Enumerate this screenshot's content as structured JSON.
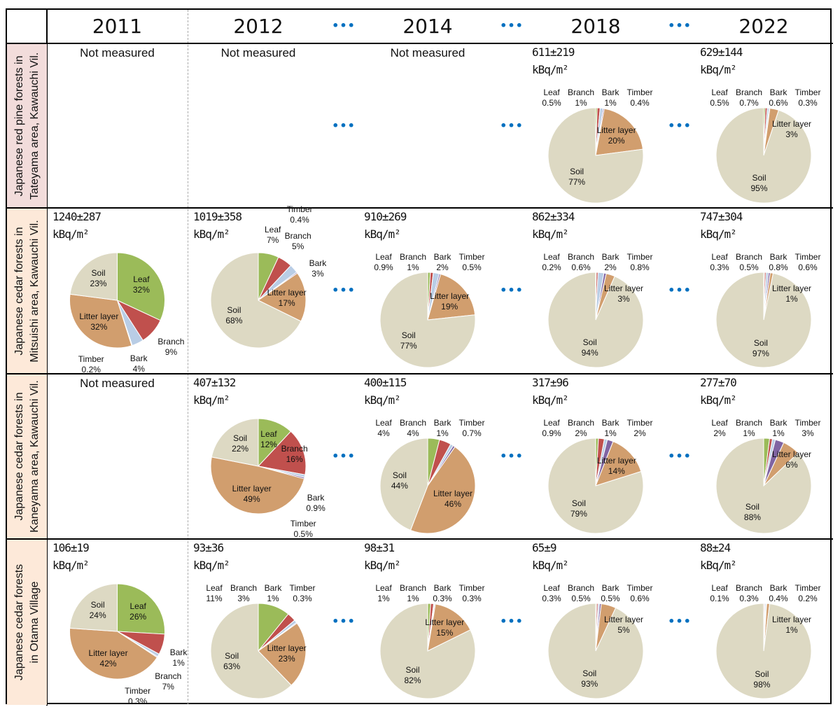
{
  "header": {
    "corner": ""
  },
  "continuation_marker": "•••",
  "colors": {
    "Leaf": "#9bbb59",
    "Branch": "#c0504d",
    "Bark": "#b9cde5",
    "Timber": "#8064a2",
    "Litter layer": "#d19e6e",
    "Soil": "#ddd9c3",
    "continuation_marker": "#0070c0"
  },
  "chart_data": {
    "type": "pie",
    "columns": [
      "2011",
      "2012",
      "2014",
      "2018",
      "2022"
    ],
    "rows": [
      {
        "label_lines": [
          "Japanese red pine forests in",
          "Tateyama area, Kawauchi Vil."
        ],
        "bg": "#f2dcdb",
        "cells": [
          {
            "status": "Not measured"
          },
          {
            "status": "Not measured"
          },
          {
            "status": "Not measured"
          },
          {
            "value": "611±219",
            "unit": "kBq/m²",
            "label_style": "top",
            "slices": [
              {
                "name": "Leaf",
                "value": 0.5,
                "label": "0.5%"
              },
              {
                "name": "Branch",
                "value": 1,
                "label": "1%"
              },
              {
                "name": "Bark",
                "value": 1,
                "label": "1%"
              },
              {
                "name": "Timber",
                "value": 0.4,
                "label": "0.4%"
              },
              {
                "name": "Litter layer",
                "value": 20,
                "label": "20%"
              },
              {
                "name": "Soil",
                "value": 77,
                "label": "77%"
              }
            ]
          },
          {
            "value": "629±144",
            "unit": "kBq/m²",
            "label_style": "top",
            "slices": [
              {
                "name": "Leaf",
                "value": 0.5,
                "label": "0.5%"
              },
              {
                "name": "Branch",
                "value": 0.7,
                "label": "0.7%"
              },
              {
                "name": "Bark",
                "value": 0.6,
                "label": "0.6%"
              },
              {
                "name": "Timber",
                "value": 0.3,
                "label": "0.3%"
              },
              {
                "name": "Litter layer",
                "value": 3,
                "label": "3%"
              },
              {
                "name": "Soil",
                "value": 95,
                "label": "95%"
              }
            ]
          }
        ]
      },
      {
        "label_lines": [
          "Japanese cedar forests in",
          "Mitsuishi area, Kawauchi Vil."
        ],
        "bg": "#fde9d9",
        "cells": [
          {
            "value": "1240±287",
            "unit": "kBq/m²",
            "label_style": "slice",
            "slices": [
              {
                "name": "Leaf",
                "value": 32,
                "label": "32%"
              },
              {
                "name": "Branch",
                "value": 9,
                "label": "9%"
              },
              {
                "name": "Bark",
                "value": 4,
                "label": "4%"
              },
              {
                "name": "Timber",
                "value": 0.2,
                "label": "0.2%"
              },
              {
                "name": "Litter layer",
                "value": 32,
                "label": "32%"
              },
              {
                "name": "Soil",
                "value": 23,
                "label": "23%"
              }
            ]
          },
          {
            "value": "1019±358",
            "unit": "kBq/m²",
            "label_style": "slice",
            "slices": [
              {
                "name": "Leaf",
                "value": 7,
                "label": "7%"
              },
              {
                "name": "Branch",
                "value": 5,
                "label": "5%"
              },
              {
                "name": "Bark",
                "value": 3,
                "label": "3%"
              },
              {
                "name": "Timber",
                "value": 0.4,
                "label": "0.4%"
              },
              {
                "name": "Litter layer",
                "value": 17,
                "label": "17%"
              },
              {
                "name": "Soil",
                "value": 68,
                "label": "68%"
              }
            ]
          },
          {
            "value": "910±269",
            "unit": "kBq/m²",
            "label_style": "top",
            "slices": [
              {
                "name": "Leaf",
                "value": 0.9,
                "label": "0.9%"
              },
              {
                "name": "Branch",
                "value": 1,
                "label": "1%"
              },
              {
                "name": "Bark",
                "value": 2,
                "label": "2%"
              },
              {
                "name": "Timber",
                "value": 0.5,
                "label": "0.5%"
              },
              {
                "name": "Litter layer",
                "value": 19,
                "label": "19%"
              },
              {
                "name": "Soil",
                "value": 77,
                "label": "77%"
              }
            ]
          },
          {
            "value": "862±334",
            "unit": "kBq/m²",
            "label_style": "top",
            "slices": [
              {
                "name": "Leaf",
                "value": 0.2,
                "label": "0.2%"
              },
              {
                "name": "Branch",
                "value": 0.6,
                "label": "0.6%"
              },
              {
                "name": "Bark",
                "value": 2,
                "label": "2%"
              },
              {
                "name": "Timber",
                "value": 0.8,
                "label": "0.8%"
              },
              {
                "name": "Litter layer",
                "value": 3,
                "label": "3%"
              },
              {
                "name": "Soil",
                "value": 94,
                "label": "94%"
              }
            ]
          },
          {
            "value": "747±304",
            "unit": "kBq/m²",
            "label_style": "top",
            "slices": [
              {
                "name": "Leaf",
                "value": 0.3,
                "label": "0.3%"
              },
              {
                "name": "Branch",
                "value": 0.5,
                "label": "0.5%"
              },
              {
                "name": "Bark",
                "value": 0.8,
                "label": "0.8%"
              },
              {
                "name": "Timber",
                "value": 0.6,
                "label": "0.6%"
              },
              {
                "name": "Litter layer",
                "value": 1,
                "label": "1%"
              },
              {
                "name": "Soil",
                "value": 97,
                "label": "97%"
              }
            ]
          }
        ]
      },
      {
        "label_lines": [
          "Japanese cedar forests in",
          "Kaneyama area, Kawauchi Vil."
        ],
        "bg": "#fde9d9",
        "cells": [
          {
            "status": "Not measured"
          },
          {
            "value": "407±132",
            "unit": "kBq/m²",
            "label_style": "slice",
            "slices": [
              {
                "name": "Leaf",
                "value": 12,
                "label": "12%"
              },
              {
                "name": "Branch",
                "value": 16,
                "label": "16%"
              },
              {
                "name": "Bark",
                "value": 0.9,
                "label": "0.9%"
              },
              {
                "name": "Timber",
                "value": 0.5,
                "label": "0.5%"
              },
              {
                "name": "Litter layer",
                "value": 49,
                "label": "49%"
              },
              {
                "name": "Soil",
                "value": 22,
                "label": "22%"
              }
            ]
          },
          {
            "value": "400±115",
            "unit": "kBq/m²",
            "label_style": "top",
            "slices": [
              {
                "name": "Leaf",
                "value": 4,
                "label": "4%"
              },
              {
                "name": "Branch",
                "value": 4,
                "label": "4%"
              },
              {
                "name": "Bark",
                "value": 1,
                "label": "1%"
              },
              {
                "name": "Timber",
                "value": 0.7,
                "label": "0.7%"
              },
              {
                "name": "Litter layer",
                "value": 46,
                "label": "46%"
              },
              {
                "name": "Soil",
                "value": 44,
                "label": "44%"
              }
            ]
          },
          {
            "value": "317±96",
            "unit": "kBq/m²",
            "label_style": "top",
            "slices": [
              {
                "name": "Leaf",
                "value": 0.9,
                "label": "0.9%"
              },
              {
                "name": "Branch",
                "value": 2,
                "label": "2%"
              },
              {
                "name": "Bark",
                "value": 1,
                "label": "1%"
              },
              {
                "name": "Timber",
                "value": 2,
                "label": "2%"
              },
              {
                "name": "Litter layer",
                "value": 14,
                "label": "14%"
              },
              {
                "name": "Soil",
                "value": 79,
                "label": "79%"
              }
            ]
          },
          {
            "value": "277±70",
            "unit": "kBq/m²",
            "label_style": "top",
            "slices": [
              {
                "name": "Leaf",
                "value": 2,
                "label": "2%"
              },
              {
                "name": "Branch",
                "value": 1,
                "label": "1%"
              },
              {
                "name": "Bark",
                "value": 1,
                "label": "1%"
              },
              {
                "name": "Timber",
                "value": 3,
                "label": "3%"
              },
              {
                "name": "Litter layer",
                "value": 6,
                "label": "6%"
              },
              {
                "name": "Soil",
                "value": 88,
                "label": "88%"
              }
            ]
          }
        ]
      },
      {
        "label_lines": [
          "Japanese cedar forests",
          "in Otama Village"
        ],
        "bg": "#fde9d9",
        "cells": [
          {
            "value": "106±19",
            "unit": "kBq/m²",
            "label_style": "slice",
            "slices": [
              {
                "name": "Leaf",
                "value": 26,
                "label": "26%"
              },
              {
                "name": "Branch",
                "value": 7,
                "label": "7%"
              },
              {
                "name": "Bark",
                "value": 1,
                "label": "1%"
              },
              {
                "name": "Timber",
                "value": 0.3,
                "label": "0.3%"
              },
              {
                "name": "Litter layer",
                "value": 42,
                "label": "42%"
              },
              {
                "name": "Soil",
                "value": 24,
                "label": "24%"
              }
            ]
          },
          {
            "value": "93±36",
            "unit": "kBq/m²",
            "label_style": "top",
            "slices": [
              {
                "name": "Leaf",
                "value": 11,
                "label": "11%"
              },
              {
                "name": "Branch",
                "value": 3,
                "label": "3%"
              },
              {
                "name": "Bark",
                "value": 1,
                "label": "1%"
              },
              {
                "name": "Timber",
                "value": 0.3,
                "label": "0.3%"
              },
              {
                "name": "Litter layer",
                "value": 23,
                "label": "23%"
              },
              {
                "name": "Soil",
                "value": 63,
                "label": "63%"
              }
            ]
          },
          {
            "value": "98±31",
            "unit": "kBq/m²",
            "label_style": "top",
            "slices": [
              {
                "name": "Leaf",
                "value": 1,
                "label": "1%"
              },
              {
                "name": "Branch",
                "value": 1,
                "label": "1%"
              },
              {
                "name": "Bark",
                "value": 0.3,
                "label": "0.3%"
              },
              {
                "name": "Timber",
                "value": 0.3,
                "label": "0.3%"
              },
              {
                "name": "Litter layer",
                "value": 15,
                "label": "15%"
              },
              {
                "name": "Soil",
                "value": 82,
                "label": "82%"
              }
            ]
          },
          {
            "value": "65±9",
            "unit": "kBq/m²",
            "label_style": "top",
            "slices": [
              {
                "name": "Leaf",
                "value": 0.3,
                "label": "0.3%"
              },
              {
                "name": "Branch",
                "value": 0.5,
                "label": "0.5%"
              },
              {
                "name": "Bark",
                "value": 0.5,
                "label": "0.5%"
              },
              {
                "name": "Timber",
                "value": 0.6,
                "label": "0.6%"
              },
              {
                "name": "Litter layer",
                "value": 5,
                "label": "5%"
              },
              {
                "name": "Soil",
                "value": 93,
                "label": "93%"
              }
            ]
          },
          {
            "value": "88±24",
            "unit": "kBq/m²",
            "label_style": "top",
            "slices": [
              {
                "name": "Leaf",
                "value": 0.1,
                "label": "0.1%"
              },
              {
                "name": "Branch",
                "value": 0.3,
                "label": "0.3%"
              },
              {
                "name": "Bark",
                "value": 0.4,
                "label": "0.4%"
              },
              {
                "name": "Timber",
                "value": 0.2,
                "label": "0.2%"
              },
              {
                "name": "Litter layer",
                "value": 1,
                "label": "1%"
              },
              {
                "name": "Soil",
                "value": 98,
                "label": "98%"
              }
            ]
          }
        ]
      }
    ]
  }
}
